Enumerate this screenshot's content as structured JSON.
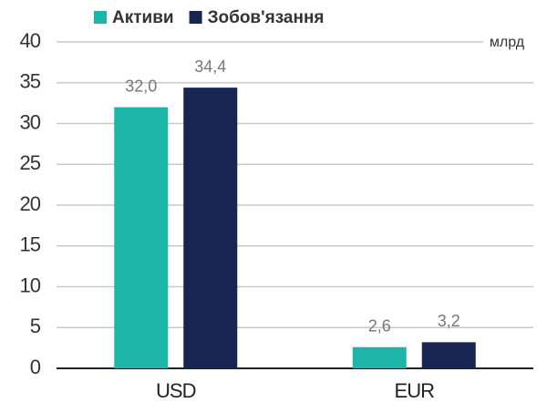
{
  "chart_data": {
    "type": "bar",
    "y_unit": "млрд",
    "categories": [
      "USD",
      "EUR"
    ],
    "series": [
      {
        "name": "Активи",
        "color": "#1db5a8",
        "values": [
          32.0,
          2.6
        ],
        "value_labels": [
          "32,0",
          "2,6"
        ]
      },
      {
        "name": "Зобов'язання",
        "color": "#172550",
        "values": [
          34.4,
          3.2
        ],
        "value_labels": [
          "34,4",
          "3,2"
        ]
      }
    ],
    "ylim": [
      0,
      40
    ],
    "yticks": [
      0,
      5,
      10,
      15,
      20,
      25,
      30,
      35,
      40
    ],
    "grid": true,
    "legend": "top"
  }
}
